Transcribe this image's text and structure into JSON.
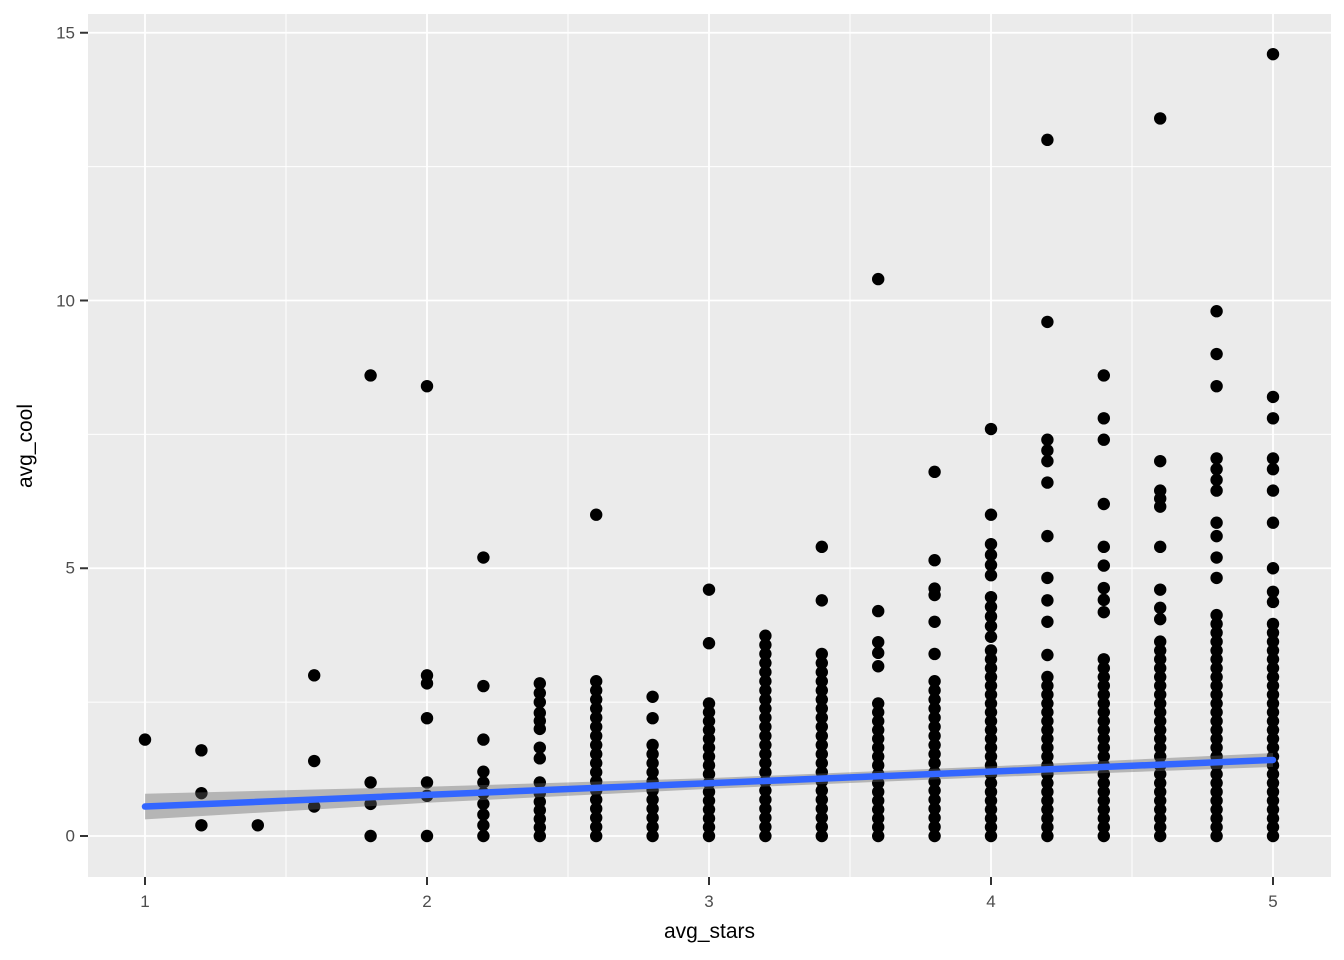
{
  "chart_data": {
    "type": "scatter",
    "title": "",
    "xlabel": "avg_stars",
    "ylabel": "avg_cool",
    "x_ticks": [
      1,
      2,
      3,
      4,
      5
    ],
    "y_ticks": [
      0,
      5,
      10,
      15
    ],
    "x_minor_gridlines": [
      1.5,
      2.5,
      3.5,
      4.5
    ],
    "y_minor_gridlines": [
      2.5,
      7.5,
      12.5
    ],
    "xlim": [
      0.8,
      5.22
    ],
    "ylim": [
      -0.8,
      15.35
    ],
    "grid": true,
    "legend_position": "none",
    "columns": [
      {
        "x": 1.0,
        "points": [
          1.8
        ]
      },
      {
        "x": 1.2,
        "points": [
          0.2,
          0.8,
          1.6
        ]
      },
      {
        "x": 1.4,
        "points": [
          0.2
        ]
      },
      {
        "x": 1.6,
        "points": [
          0.55,
          1.4,
          3.0
        ]
      },
      {
        "x": 1.8,
        "points": [
          0.0,
          0.6,
          1.0,
          8.6
        ]
      },
      {
        "x": 2.0,
        "points": [
          0.0,
          0.75,
          1.0,
          2.2,
          2.85,
          3.0,
          8.4
        ]
      },
      {
        "x": 2.2,
        "points": [
          0.0,
          0.2,
          0.4,
          0.6,
          0.8,
          1.0,
          1.2,
          1.8,
          2.8,
          5.2
        ]
      },
      {
        "x": 2.4,
        "stack": {
          "from": 0,
          "to": 0.8,
          "step": 0.16
        },
        "points": [
          1.0,
          1.45,
          1.65,
          2.0,
          2.15,
          2.3,
          2.5,
          2.67,
          2.85
        ]
      },
      {
        "x": 2.6,
        "stack": {
          "from": 0,
          "to": 2.9,
          "step": 0.17
        },
        "points": [
          6.0
        ]
      },
      {
        "x": 2.8,
        "stack": {
          "from": 0,
          "to": 1.85,
          "step": 0.17
        },
        "points": [
          2.2,
          2.6
        ]
      },
      {
        "x": 3.0,
        "stack": {
          "from": 0,
          "to": 2.6,
          "step": 0.165
        },
        "points": [
          3.6,
          4.6
        ]
      },
      {
        "x": 3.2,
        "stack": {
          "from": 0,
          "to": 3.9,
          "step": 0.17
        },
        "points": []
      },
      {
        "x": 3.4,
        "stack": {
          "from": 0,
          "to": 3.5,
          "step": 0.17
        },
        "points": [
          4.4,
          5.4
        ]
      },
      {
        "x": 3.6,
        "stack": {
          "from": 0,
          "to": 2.6,
          "step": 0.165
        },
        "points": [
          3.17,
          3.42,
          3.62,
          4.2,
          10.4
        ]
      },
      {
        "x": 3.8,
        "stack": {
          "from": 0,
          "to": 3.05,
          "step": 0.17
        },
        "points": [
          3.4,
          4.0,
          4.5,
          4.62,
          5.15,
          6.8
        ]
      },
      {
        "x": 4.0,
        "stack": {
          "from": 0,
          "to": 3.5,
          "step": 0.165
        },
        "points": [
          3.72,
          3.92,
          4.1,
          4.28,
          4.46,
          4.87,
          5.06,
          5.25,
          5.45,
          6.0,
          7.6
        ]
      },
      {
        "x": 4.2,
        "stack": {
          "from": 0,
          "to": 3.05,
          "step": 0.165
        },
        "points": [
          3.38,
          4.0,
          4.4,
          4.82,
          5.6,
          6.6,
          7.0,
          7.2,
          7.4,
          9.6,
          13.0
        ]
      },
      {
        "x": 4.4,
        "stack": {
          "from": 0,
          "to": 3.45,
          "step": 0.165
        },
        "points": [
          4.18,
          4.41,
          4.63,
          5.05,
          5.4,
          6.2,
          7.4,
          7.8,
          8.6
        ]
      },
      {
        "x": 4.6,
        "stack": {
          "from": 0,
          "to": 3.7,
          "step": 0.165
        },
        "points": [
          4.05,
          4.26,
          4.6,
          5.4,
          6.15,
          6.3,
          6.45,
          7.0,
          13.4
        ]
      },
      {
        "x": 4.8,
        "stack": {
          "from": 0,
          "to": 4.2,
          "step": 0.165
        },
        "points": [
          4.82,
          5.2,
          5.6,
          5.85,
          6.45,
          6.65,
          6.85,
          7.05,
          8.4,
          9.0,
          9.8
        ]
      },
      {
        "x": 5.0,
        "stack": {
          "from": 0,
          "to": 4.05,
          "step": 0.165
        },
        "points": [
          4.37,
          4.56,
          5.0,
          5.85,
          6.45,
          6.85,
          7.05,
          7.8,
          8.2,
          14.6
        ]
      }
    ],
    "smooth_line": {
      "x1": 1.0,
      "y1": 0.55,
      "x2": 5.0,
      "y2": 1.42,
      "ribbon": [
        {
          "x": 1.0,
          "lo": 0.31,
          "hi": 0.79
        },
        {
          "x": 2.0,
          "lo": 0.62,
          "hi": 0.92
        },
        {
          "x": 3.0,
          "lo": 0.88,
          "hi": 1.08
        },
        {
          "x": 4.0,
          "lo": 1.1,
          "hi": 1.3
        },
        {
          "x": 5.0,
          "lo": 1.29,
          "hi": 1.55
        }
      ]
    }
  },
  "colors": {
    "background": "#FFFFFF",
    "panel": "#EBEBEB",
    "grid": "#FFFFFF",
    "point": "#000000",
    "smooth_line": "#3366FF",
    "ribbon": "rgba(100,100,100,0.40)",
    "axis_text": "#4D4D4D",
    "axis_title": "#000000",
    "tick_mark": "#333333"
  }
}
